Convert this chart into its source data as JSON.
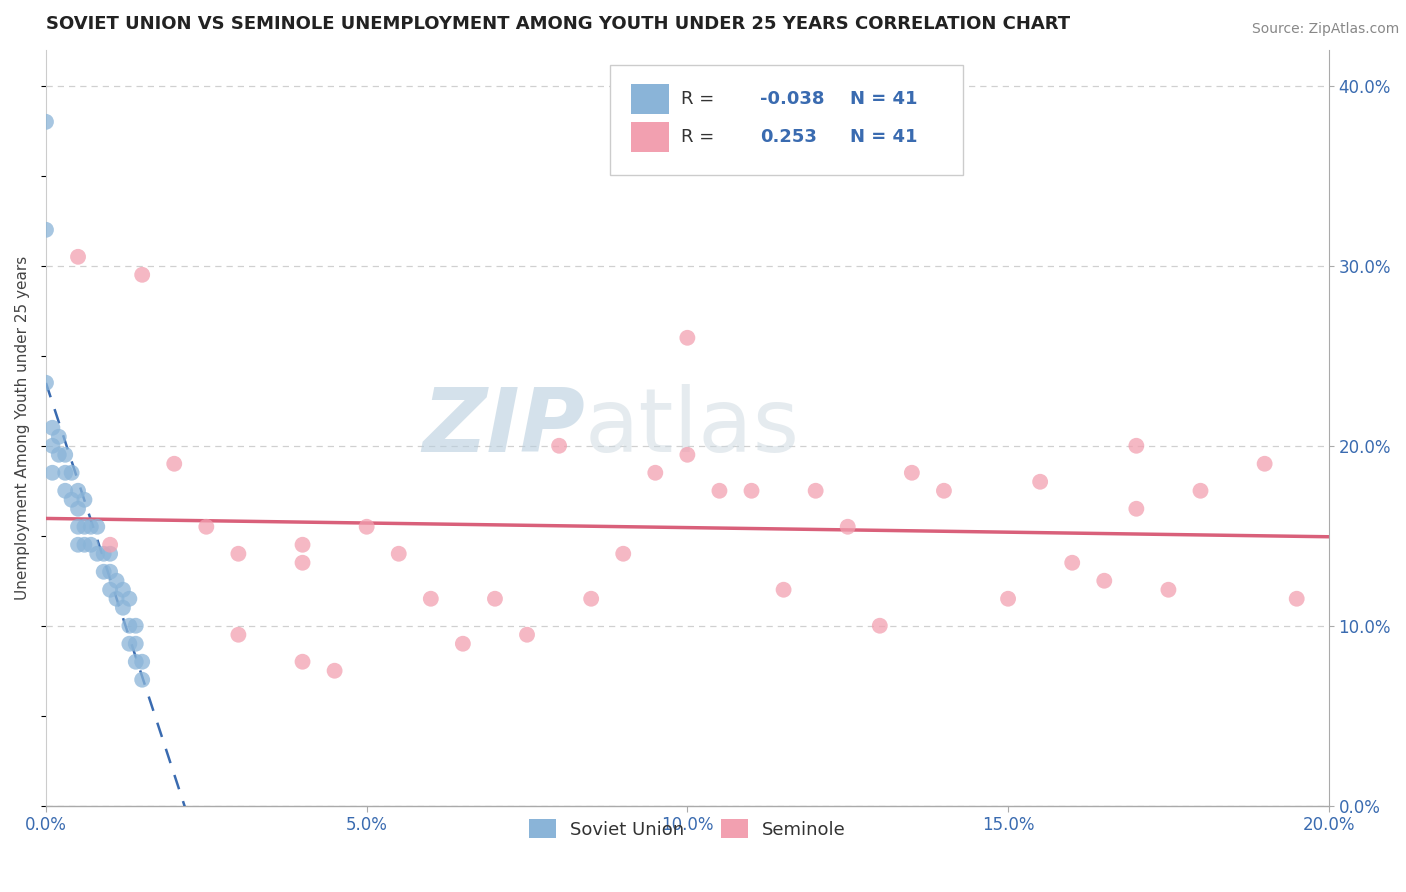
{
  "title": "SOVIET UNION VS SEMINOLE UNEMPLOYMENT AMONG YOUTH UNDER 25 YEARS CORRELATION CHART",
  "source": "Source: ZipAtlas.com",
  "ylabel": "Unemployment Among Youth under 25 years",
  "xlim": [
    0.0,
    0.2
  ],
  "ylim": [
    0.0,
    0.42
  ],
  "xticks": [
    0.0,
    0.05,
    0.1,
    0.15,
    0.2
  ],
  "xtick_labels": [
    "0.0%",
    "5.0%",
    "10.0%",
    "15.0%",
    "20.0%"
  ],
  "yticks_right": [
    0.0,
    0.1,
    0.2,
    0.3,
    0.4
  ],
  "ytick_labels_right": [
    "0.0%",
    "10.0%",
    "20.0%",
    "30.0%",
    "40.0%"
  ],
  "soviet_color": "#8ab4d8",
  "seminole_color": "#f2a0b0",
  "soviet_line_color": "#3a6bb0",
  "seminole_line_color": "#d9607a",
  "soviet_R": -0.038,
  "soviet_N": 41,
  "seminole_R": 0.253,
  "seminole_N": 41,
  "soviet_x": [
    0.0,
    0.0,
    0.0,
    0.001,
    0.001,
    0.001,
    0.002,
    0.002,
    0.003,
    0.003,
    0.003,
    0.004,
    0.004,
    0.005,
    0.005,
    0.005,
    0.005,
    0.006,
    0.006,
    0.006,
    0.007,
    0.007,
    0.008,
    0.008,
    0.009,
    0.009,
    0.01,
    0.01,
    0.01,
    0.011,
    0.011,
    0.012,
    0.012,
    0.013,
    0.013,
    0.013,
    0.014,
    0.014,
    0.014,
    0.015,
    0.015
  ],
  "soviet_y": [
    0.38,
    0.32,
    0.235,
    0.21,
    0.2,
    0.185,
    0.205,
    0.195,
    0.195,
    0.185,
    0.175,
    0.185,
    0.17,
    0.175,
    0.165,
    0.155,
    0.145,
    0.17,
    0.155,
    0.145,
    0.155,
    0.145,
    0.155,
    0.14,
    0.14,
    0.13,
    0.14,
    0.13,
    0.12,
    0.125,
    0.115,
    0.12,
    0.11,
    0.115,
    0.1,
    0.09,
    0.1,
    0.09,
    0.08,
    0.08,
    0.07
  ],
  "seminole_x": [
    0.005,
    0.01,
    0.015,
    0.02,
    0.025,
    0.03,
    0.03,
    0.04,
    0.04,
    0.04,
    0.045,
    0.05,
    0.055,
    0.06,
    0.065,
    0.07,
    0.075,
    0.08,
    0.085,
    0.09,
    0.095,
    0.1,
    0.1,
    0.105,
    0.11,
    0.115,
    0.12,
    0.125,
    0.13,
    0.135,
    0.14,
    0.15,
    0.155,
    0.16,
    0.165,
    0.17,
    0.17,
    0.175,
    0.18,
    0.19,
    0.195
  ],
  "seminole_y": [
    0.305,
    0.145,
    0.295,
    0.19,
    0.155,
    0.14,
    0.095,
    0.145,
    0.135,
    0.08,
    0.075,
    0.155,
    0.14,
    0.115,
    0.09,
    0.115,
    0.095,
    0.2,
    0.115,
    0.14,
    0.185,
    0.26,
    0.195,
    0.175,
    0.175,
    0.12,
    0.175,
    0.155,
    0.1,
    0.185,
    0.175,
    0.115,
    0.18,
    0.135,
    0.125,
    0.2,
    0.165,
    0.12,
    0.175,
    0.19,
    0.115
  ],
  "background_color": "#ffffff",
  "watermark_zip": "ZIP",
  "watermark_atlas": "atlas",
  "grid_color": "#d0d0d0"
}
